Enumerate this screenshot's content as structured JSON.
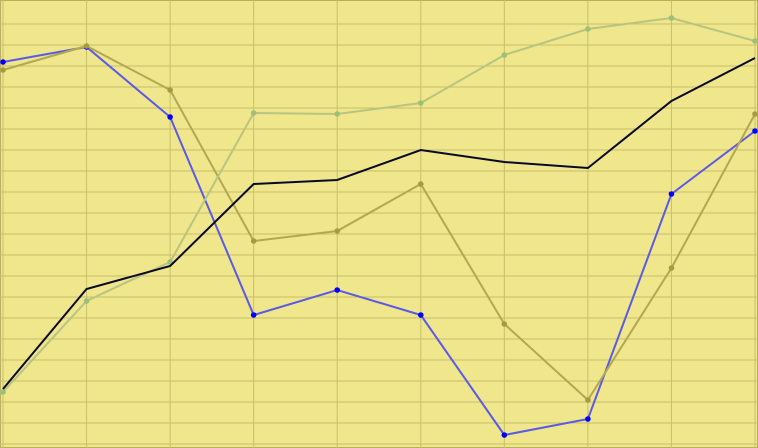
{
  "chart_data": {
    "type": "line",
    "x": [
      0,
      1,
      2,
      3,
      4,
      5,
      6,
      7,
      8,
      9
    ],
    "xlim": [
      0,
      9
    ],
    "xticks": [
      0,
      1,
      2,
      3,
      4,
      5,
      6,
      7,
      8,
      9
    ],
    "ylim": [
      0,
      448
    ],
    "yticks": [
      4,
      25,
      46,
      67,
      88,
      109,
      130,
      151,
      172,
      193,
      214,
      235,
      256,
      277,
      298,
      319,
      340,
      361,
      382,
      403,
      424
    ],
    "grid": true,
    "background": "#f0e68c",
    "series": [
      {
        "color": "#5a5ae6",
        "marker_color": "#0000ff",
        "markers": true,
        "values": [
          386,
          401,
          331,
          133,
          158,
          133,
          13,
          29,
          254,
          317
        ]
      },
      {
        "color": "#b3a852",
        "marker_color": "#a89a40",
        "markers": true,
        "values": [
          378,
          402,
          358,
          207,
          217,
          264,
          124,
          48,
          180,
          334
        ]
      },
      {
        "color": "#b8c480",
        "marker_color": "#9cc07a",
        "markers": true,
        "values": [
          56,
          147,
          186,
          335,
          334,
          345,
          393,
          419,
          430,
          407
        ]
      },
      {
        "color": "#0a0a28",
        "marker_color": "#0a0a28",
        "markers": false,
        "values": [
          59,
          159,
          182,
          264,
          268,
          298,
          286,
          280,
          347,
          390
        ]
      }
    ]
  }
}
